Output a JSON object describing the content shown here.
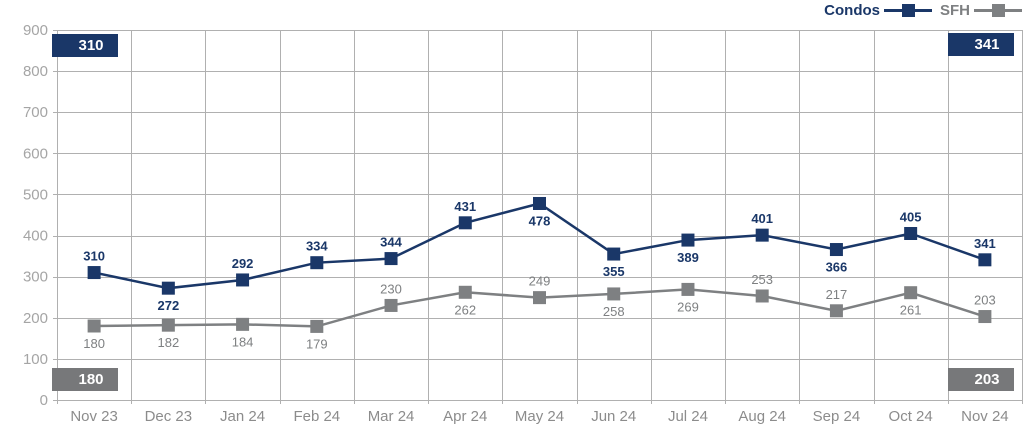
{
  "chart_data": {
    "type": "line",
    "title": "",
    "xlabel": "",
    "ylabel": "",
    "categories": [
      "Nov 23",
      "Dec 23",
      "Jan 24",
      "Feb 24",
      "Mar 24",
      "Apr 24",
      "May 24",
      "Jun 24",
      "Jul 24",
      "Aug 24",
      "Sep 24",
      "Oct 24",
      "Nov 24"
    ],
    "series": [
      {
        "name": "Condos",
        "color": "#1a3768",
        "values": [
          310,
          272,
          292,
          334,
          344,
          431,
          478,
          355,
          389,
          401,
          366,
          405,
          341
        ],
        "label_positions": [
          "above",
          "below",
          "above",
          "above",
          "above",
          "above",
          "below",
          "below",
          "below",
          "above",
          "below",
          "above",
          "above"
        ]
      },
      {
        "name": "SFH",
        "color": "#7e8082",
        "values": [
          180,
          182,
          184,
          179,
          230,
          262,
          249,
          258,
          269,
          253,
          217,
          261,
          203
        ],
        "label_positions": [
          "below",
          "below",
          "below",
          "below",
          "above",
          "below",
          "above",
          "below",
          "below",
          "above",
          "above",
          "below",
          "above"
        ]
      }
    ],
    "ylim": [
      0,
      900
    ],
    "ytick_step": 100,
    "ytick_labels": [
      "0",
      "100",
      "200",
      "300",
      "400",
      "500",
      "600",
      "700",
      "800",
      "900"
    ],
    "grid": true,
    "legend_position": "top-right",
    "badges": {
      "top_left": "310",
      "top_right": "341",
      "bottom_left": "180",
      "bottom_right": "203"
    }
  },
  "legend": {
    "items": [
      {
        "label": "Condos",
        "color": "#1a3768"
      },
      {
        "label": "SFH",
        "color": "#7e8082"
      }
    ]
  },
  "colors": {
    "condos": "#1a3768",
    "sfh": "#7e8082",
    "grid_line": "#b0b0b0",
    "y_axis_text": "#a5a5a5",
    "x_axis_text": "#8c8c8c",
    "badge_navy_bg": "#1a3768",
    "badge_gray_bg": "#77787a",
    "badge_text": "#ffffff"
  }
}
